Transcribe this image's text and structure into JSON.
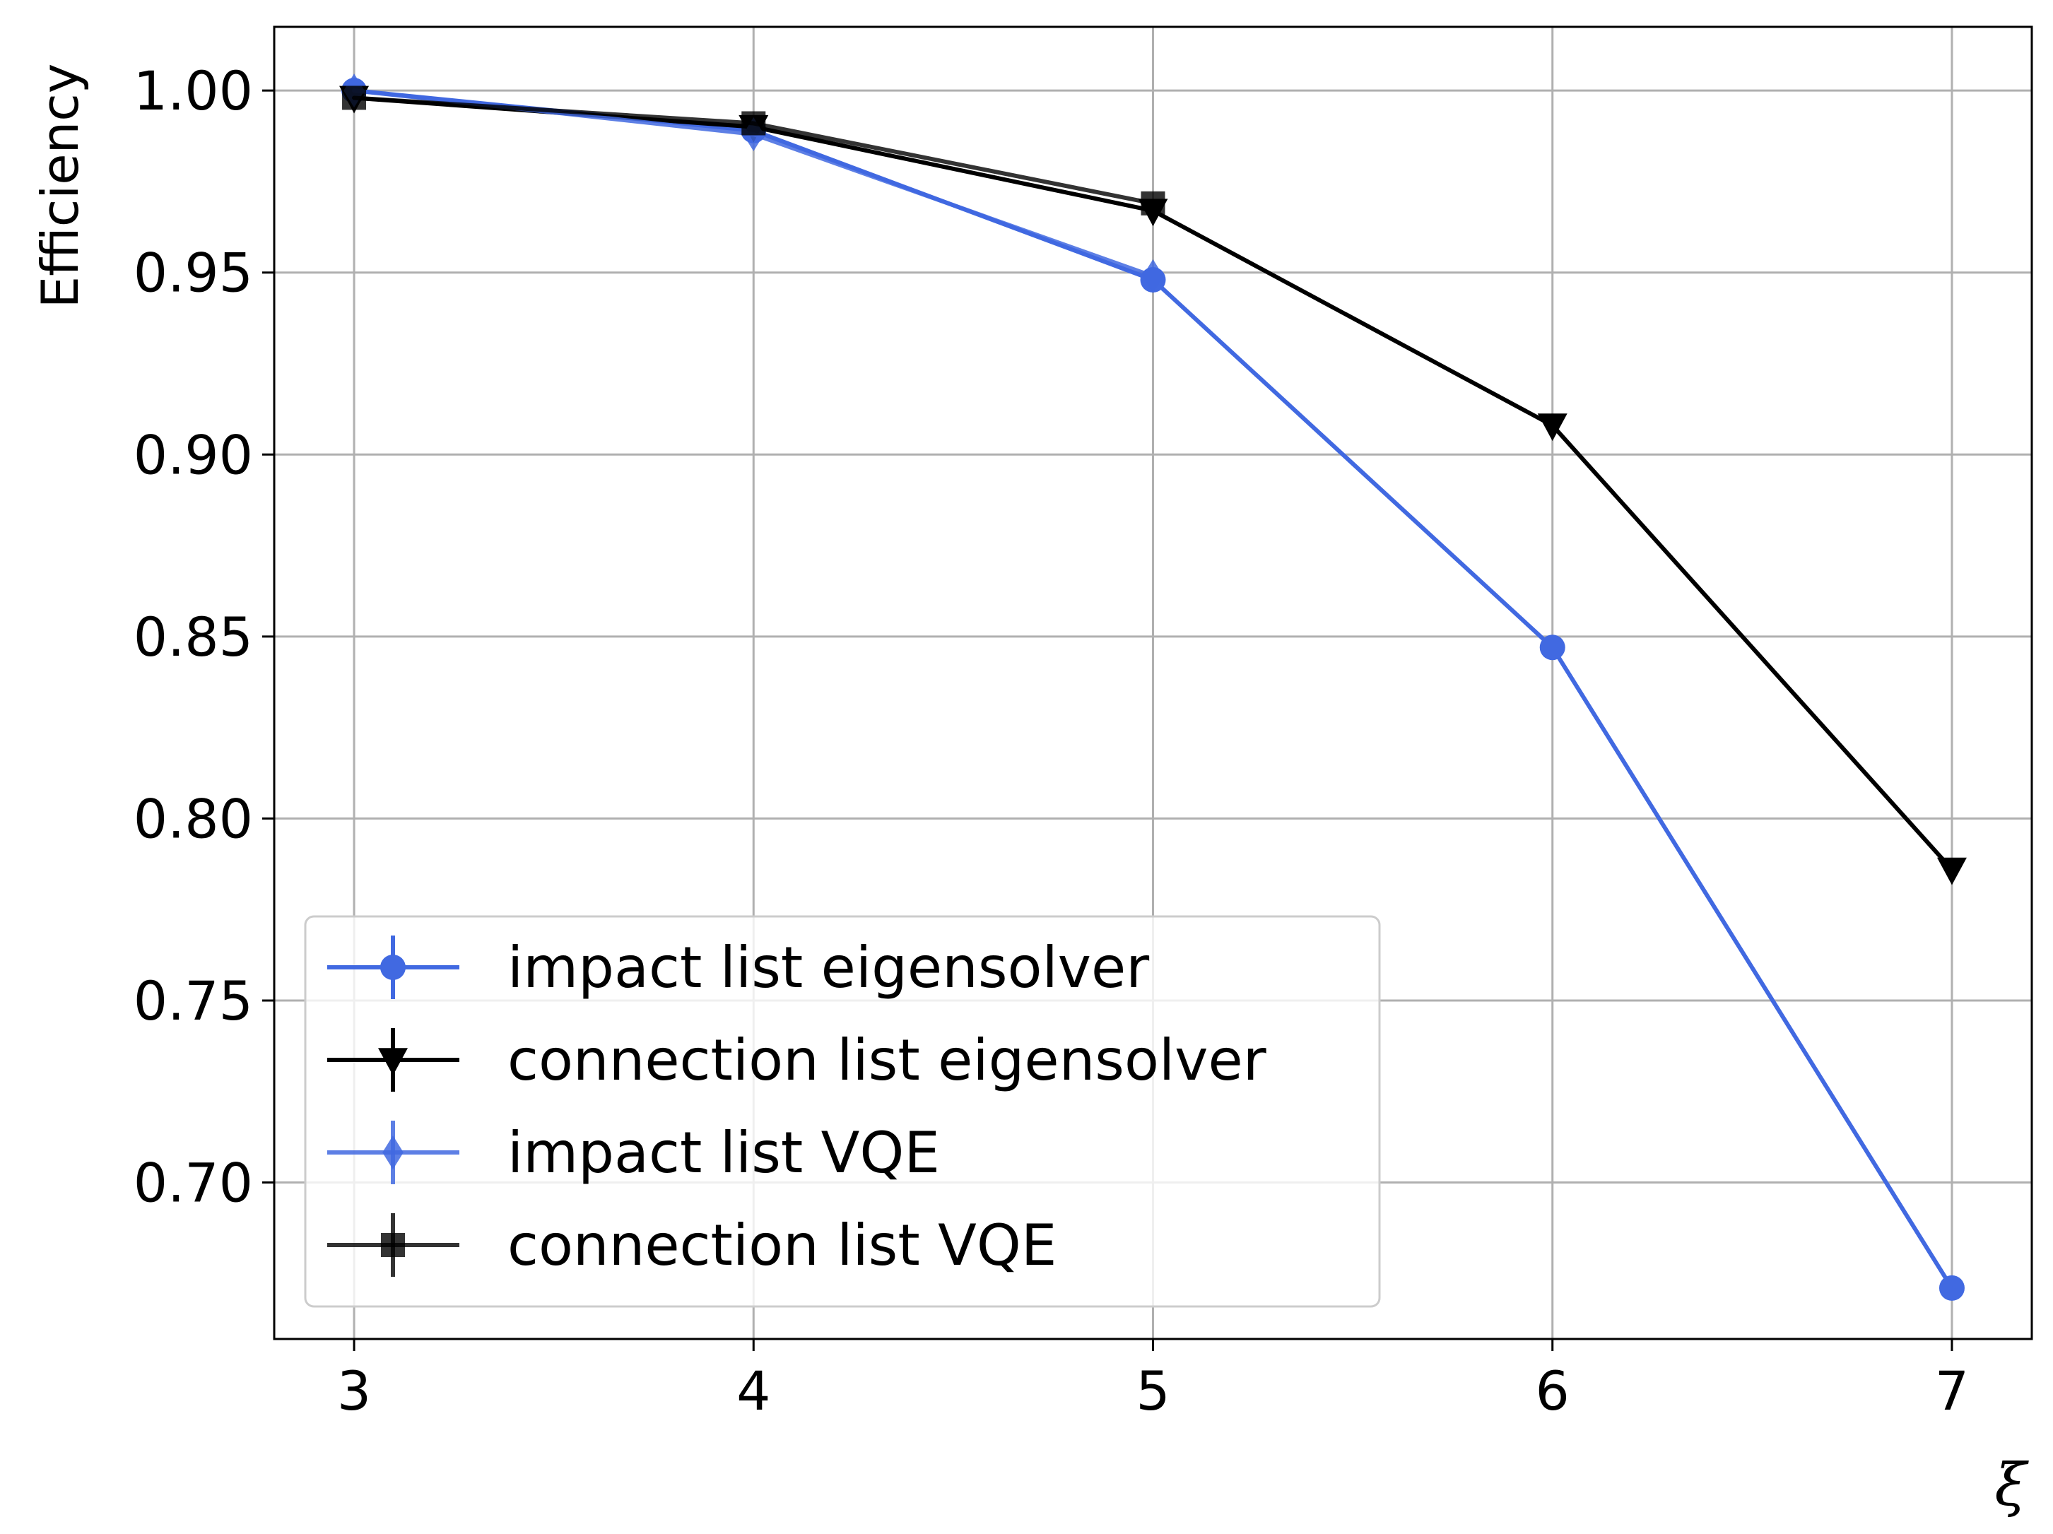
{
  "chart_data": {
    "type": "line",
    "title": "",
    "xlabel": "ξ",
    "ylabel": "Efficiency",
    "x": [
      3,
      4,
      5,
      6,
      7
    ],
    "xlim": [
      2.8,
      7.2
    ],
    "ylim": [
      0.657,
      1.0175
    ],
    "x_ticks": [
      "3",
      "4",
      "5",
      "6",
      "7"
    ],
    "y_ticks": [
      "0.70",
      "0.75",
      "0.80",
      "0.85",
      "0.90",
      "0.95",
      "1.00"
    ],
    "y_tick_values": [
      0.7,
      0.75,
      0.8,
      0.85,
      0.9,
      0.95,
      1.0
    ],
    "grid": true,
    "legend_position": "lower-left",
    "series": [
      {
        "name": "impact list eigensolver",
        "x": [
          3,
          4,
          5,
          6,
          7
        ],
        "values": [
          1.0,
          0.989,
          0.948,
          0.847,
          0.671
        ],
        "color": "#4169e1",
        "marker": "circle",
        "opacity": 1.0
      },
      {
        "name": "connection list eigensolver",
        "x": [
          3,
          4,
          5,
          6,
          7
        ],
        "values": [
          0.998,
          0.99,
          0.967,
          0.908,
          0.786
        ],
        "color": "#000000",
        "marker": "triangle-down",
        "opacity": 1.0
      },
      {
        "name": "impact list VQE",
        "x": [
          3,
          4,
          5
        ],
        "values": [
          1.0,
          0.988,
          0.949
        ],
        "color": "#4169e1",
        "marker": "diamond",
        "opacity": 0.85
      },
      {
        "name": "connection list VQE",
        "x": [
          3,
          4,
          5
        ],
        "values": [
          0.998,
          0.991,
          0.969
        ],
        "color": "#000000",
        "marker": "square",
        "opacity": 0.8
      }
    ]
  }
}
